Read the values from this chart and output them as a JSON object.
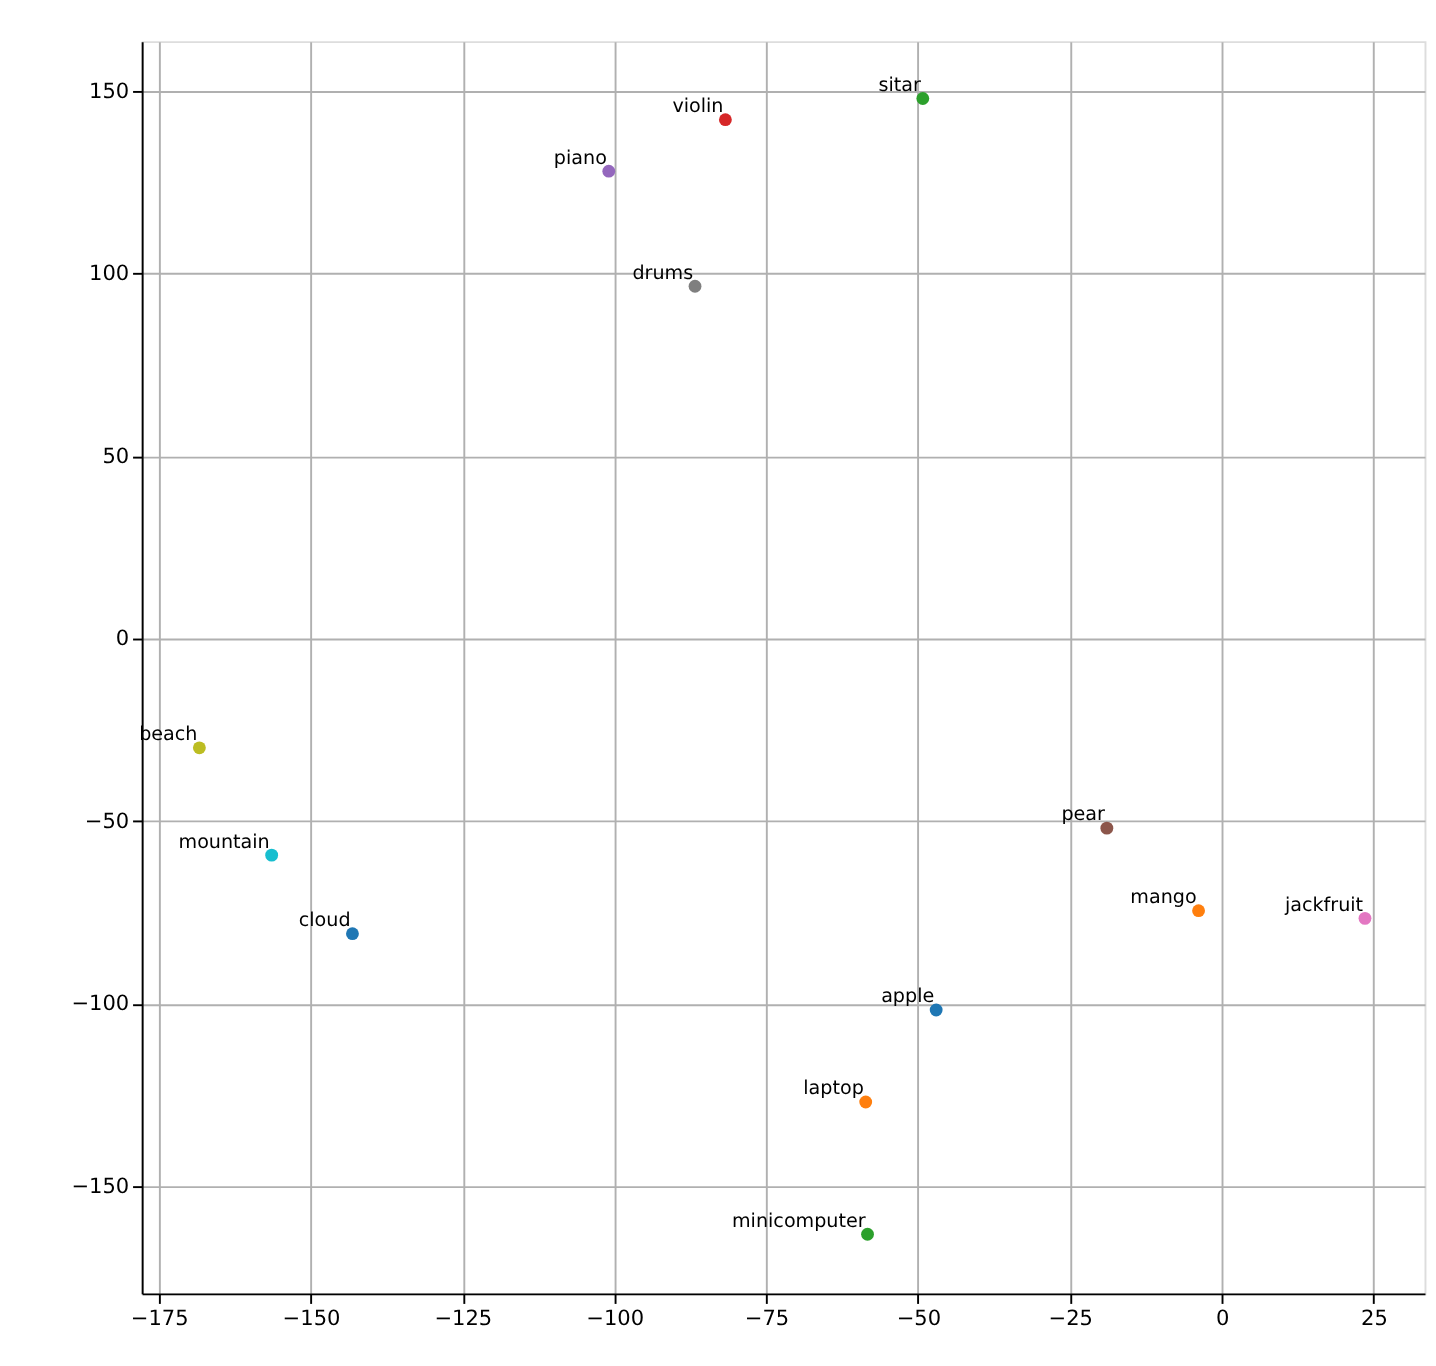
{
  "chart_data": {
    "type": "scatter",
    "xlim": [
      -177.8,
      33.4
    ],
    "ylim": [
      -179.3,
      163.6
    ],
    "xticks": [
      -175,
      -150,
      -125,
      -100,
      -75,
      -50,
      -25,
      0,
      25
    ],
    "yticks": [
      -150,
      -100,
      -50,
      0,
      50,
      100,
      150
    ],
    "grid": true,
    "marker": "circle",
    "series": [
      {
        "name": "apple",
        "color": "#1f77b4",
        "x": [
          -47.0
        ],
        "values": [
          -101.7
        ]
      },
      {
        "name": "mango",
        "color": "#ff7f0e",
        "x": [
          -3.8
        ],
        "values": [
          -74.5
        ]
      },
      {
        "name": "sitar",
        "color": "#2ca02c",
        "x": [
          -49.2
        ],
        "values": [
          147.9
        ]
      },
      {
        "name": "violin",
        "color": "#d62728",
        "x": [
          -81.7
        ],
        "values": [
          142.1
        ]
      },
      {
        "name": "piano",
        "color": "#9467bd",
        "x": [
          -100.9
        ],
        "values": [
          128.0
        ]
      },
      {
        "name": "pear",
        "color": "#8c564b",
        "x": [
          -18.9
        ],
        "values": [
          -51.9
        ]
      },
      {
        "name": "jackfruit",
        "color": "#e377c2",
        "x": [
          23.6
        ],
        "values": [
          -76.6
        ]
      },
      {
        "name": "drums",
        "color": "#7f7f7f",
        "x": [
          -86.7
        ],
        "values": [
          96.5
        ]
      },
      {
        "name": "beach",
        "color": "#bcbd22",
        "x": [
          -168.3
        ],
        "values": [
          -29.9
        ]
      },
      {
        "name": "mountain",
        "color": "#17becf",
        "x": [
          -156.4
        ],
        "values": [
          -59.3
        ]
      },
      {
        "name": "cloud",
        "color": "#1f77b4",
        "x": [
          -143.1
        ],
        "values": [
          -80.8
        ]
      },
      {
        "name": "laptop",
        "color": "#ff7f0e",
        "x": [
          -58.6
        ],
        "values": [
          -126.9
        ]
      },
      {
        "name": "minicomputer",
        "color": "#2ca02c",
        "x": [
          -58.3
        ],
        "values": [
          -163.1
        ]
      }
    ]
  }
}
